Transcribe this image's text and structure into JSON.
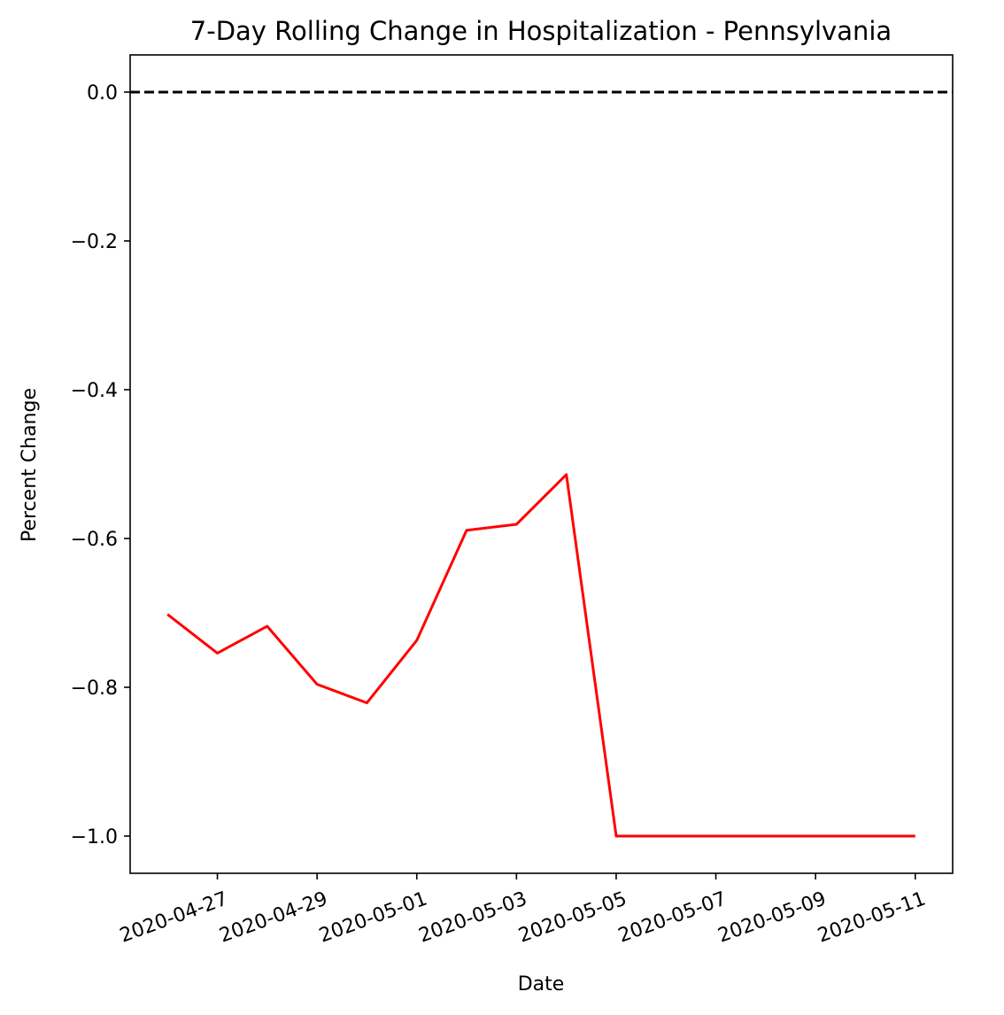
{
  "chart_data": {
    "type": "line",
    "title": "7-Day Rolling Change in Hospitalization - Pennsylvania",
    "xlabel": "Date",
    "ylabel": "Percent Change",
    "xlim": [
      "2020-04-25 06:00",
      "2020-05-11 18:00"
    ],
    "ylim": [
      -1.05,
      0.05
    ],
    "x_ticks": [
      "2020-04-27",
      "2020-04-29",
      "2020-05-01",
      "2020-05-03",
      "2020-05-05",
      "2020-05-07",
      "2020-05-09",
      "2020-05-11"
    ],
    "y_ticks": [
      "0.0",
      "−0.2",
      "−0.4",
      "−0.6",
      "−0.8",
      "−1.0"
    ],
    "y_tick_values": [
      0.0,
      -0.2,
      -0.4,
      -0.6,
      -0.8,
      -1.0
    ],
    "grid": false,
    "reference_line": {
      "y": 0.0,
      "style": "dashed",
      "color": "#000000"
    },
    "series": [
      {
        "color": "#ff0000",
        "x": [
          "2020-04-26",
          "2020-04-27",
          "2020-04-28",
          "2020-04-29",
          "2020-04-30",
          "2020-05-01",
          "2020-05-02",
          "2020-05-03",
          "2020-05-04",
          "2020-05-05",
          "2020-05-06",
          "2020-05-07",
          "2020-05-08",
          "2020-05-09",
          "2020-05-10",
          "2020-05-11"
        ],
        "values": [
          -0.702,
          -0.754,
          -0.718,
          -0.796,
          -0.821,
          -0.737,
          -0.589,
          -0.581,
          -0.514,
          -1.0,
          -1.0,
          -1.0,
          -1.0,
          -1.0,
          -1.0,
          -1.0
        ]
      }
    ]
  }
}
